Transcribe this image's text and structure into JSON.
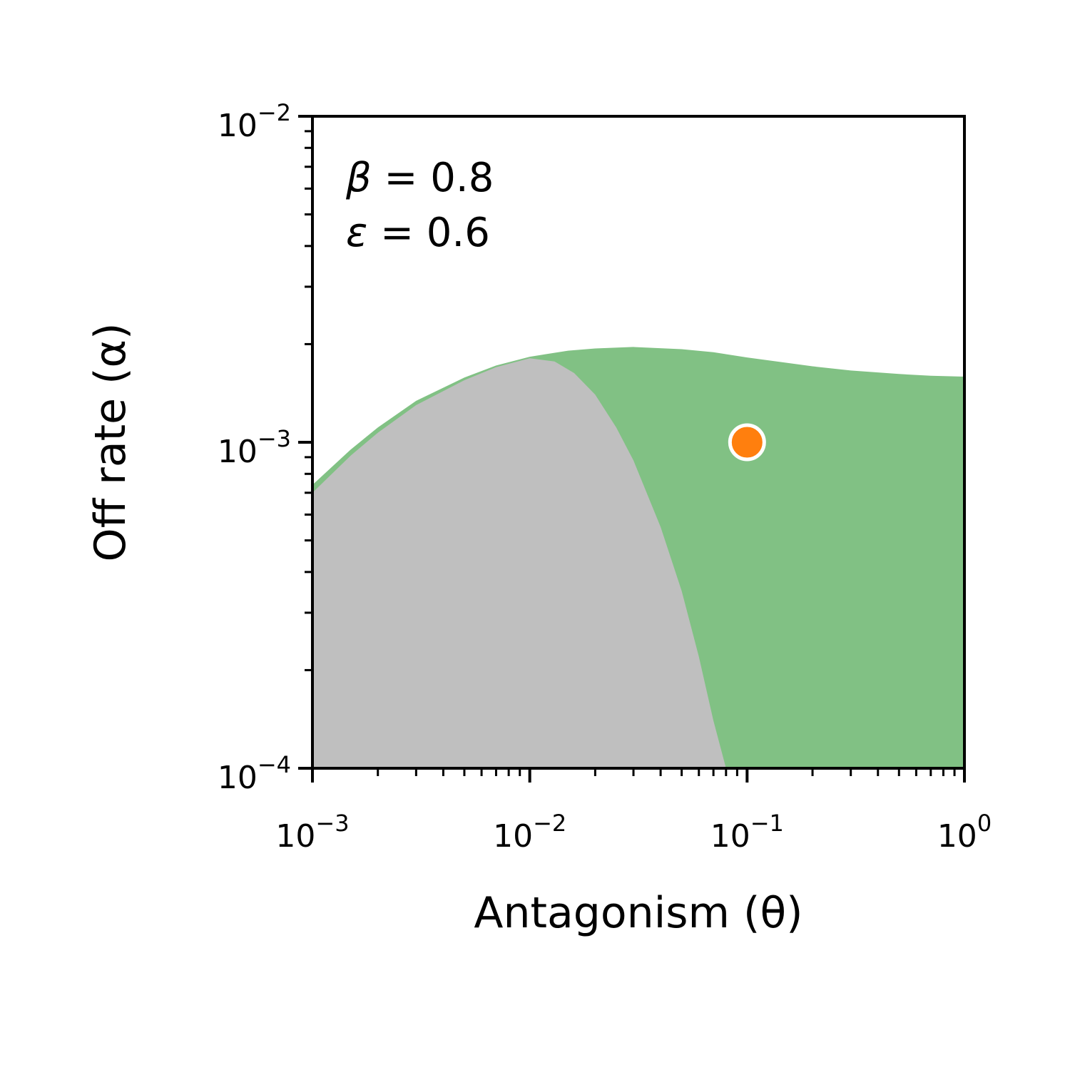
{
  "chart_data": {
    "type": "area",
    "xlabel": "Antagonism (θ)",
    "ylabel": "Off rate (α)",
    "xscale": "log",
    "yscale": "log",
    "xlim": [
      0.001,
      1
    ],
    "ylim": [
      0.0001,
      0.01
    ],
    "x_ticks": [
      {
        "base": "10",
        "exp": "−3",
        "value": 0.001
      },
      {
        "base": "10",
        "exp": "−2",
        "value": 0.01
      },
      {
        "base": "10",
        "exp": "−1",
        "value": 0.1
      },
      {
        "base": "10",
        "exp": "0",
        "value": 1
      }
    ],
    "y_ticks": [
      {
        "base": "10",
        "exp": "−4",
        "value": 0.0001
      },
      {
        "base": "10",
        "exp": "−3",
        "value": 0.001
      },
      {
        "base": "10",
        "exp": "−2",
        "value": 0.01
      }
    ],
    "annotations": [
      {
        "symbol": "β",
        "text": " = 0.8"
      },
      {
        "symbol": "ε",
        "text": " = 0.6"
      }
    ],
    "grid": false,
    "legend": "none",
    "regions": [
      {
        "color": "#81c184",
        "boundary_x": [
          0.001,
          0.0015,
          0.002,
          0.003,
          0.005,
          0.007,
          0.01,
          0.015,
          0.02,
          0.03,
          0.05,
          0.07,
          0.1,
          0.2,
          0.3,
          0.5,
          0.7,
          1.0
        ],
        "boundary_y": [
          0.00074,
          0.00095,
          0.00111,
          0.00134,
          0.00158,
          0.00172,
          0.00183,
          0.00191,
          0.00194,
          0.00196,
          0.00193,
          0.00189,
          0.00182,
          0.00171,
          0.00166,
          0.00162,
          0.0016,
          0.00159
        ]
      },
      {
        "color": "#bfbfbf",
        "boundary_x": [
          0.001,
          0.0015,
          0.002,
          0.003,
          0.005,
          0.007,
          0.01,
          0.013,
          0.016,
          0.02,
          0.025,
          0.03,
          0.04,
          0.05,
          0.06,
          0.07,
          0.08
        ],
        "boundary_y": [
          0.0007,
          0.00091,
          0.00107,
          0.0013,
          0.00155,
          0.0017,
          0.00181,
          0.00177,
          0.00163,
          0.0014,
          0.00111,
          0.00088,
          0.00055,
          0.00035,
          0.00022,
          0.00014,
          0.0001
        ]
      }
    ],
    "points": [
      {
        "x": 0.1,
        "y": 0.001,
        "color": "#ff7f0e"
      }
    ]
  }
}
